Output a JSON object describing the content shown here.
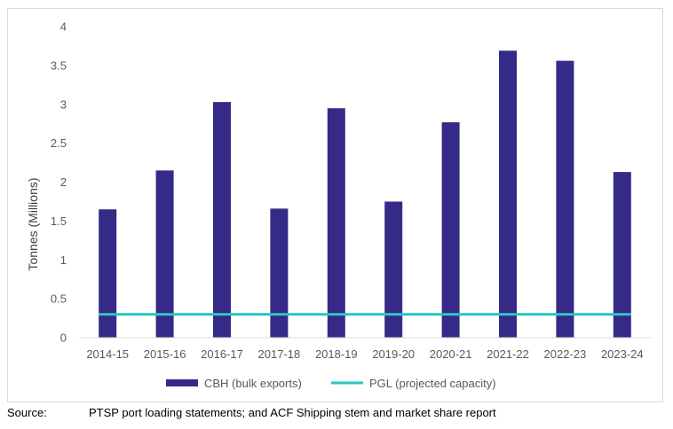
{
  "chart_data": {
    "type": "bar",
    "ylabel": "Tonnes (Millions)",
    "xlabel": "",
    "ylim": [
      0,
      4
    ],
    "yticks": [
      0,
      0.5,
      1,
      1.5,
      2,
      2.5,
      3,
      3.5,
      4
    ],
    "ytick_labels": [
      "0",
      "0.5",
      "1",
      "1.5",
      "2",
      "2.5",
      "3",
      "3.5",
      "4"
    ],
    "grid": false,
    "legend_position": "bottom",
    "categories": [
      "2014-15",
      "2015-16",
      "2016-17",
      "2017-18",
      "2018-19",
      "2019-20",
      "2020-21",
      "2021-22",
      "2022-23",
      "2023-24"
    ],
    "series": [
      {
        "name": "CBH (bulk exports)",
        "type": "bar",
        "color": "#352a87",
        "values": [
          1.65,
          2.15,
          3.03,
          1.66,
          2.95,
          1.75,
          2.77,
          3.69,
          3.56,
          2.13
        ]
      },
      {
        "name": "PGL (projected capacity)",
        "type": "line",
        "color": "#2ec4c4",
        "values": [
          0.3,
          0.3,
          0.3,
          0.3,
          0.3,
          0.3,
          0.3,
          0.3,
          0.3,
          0.3
        ]
      }
    ]
  },
  "source": {
    "label": "Source:",
    "text": "PTSP port loading statements; and ACF Shipping stem and market share report"
  }
}
